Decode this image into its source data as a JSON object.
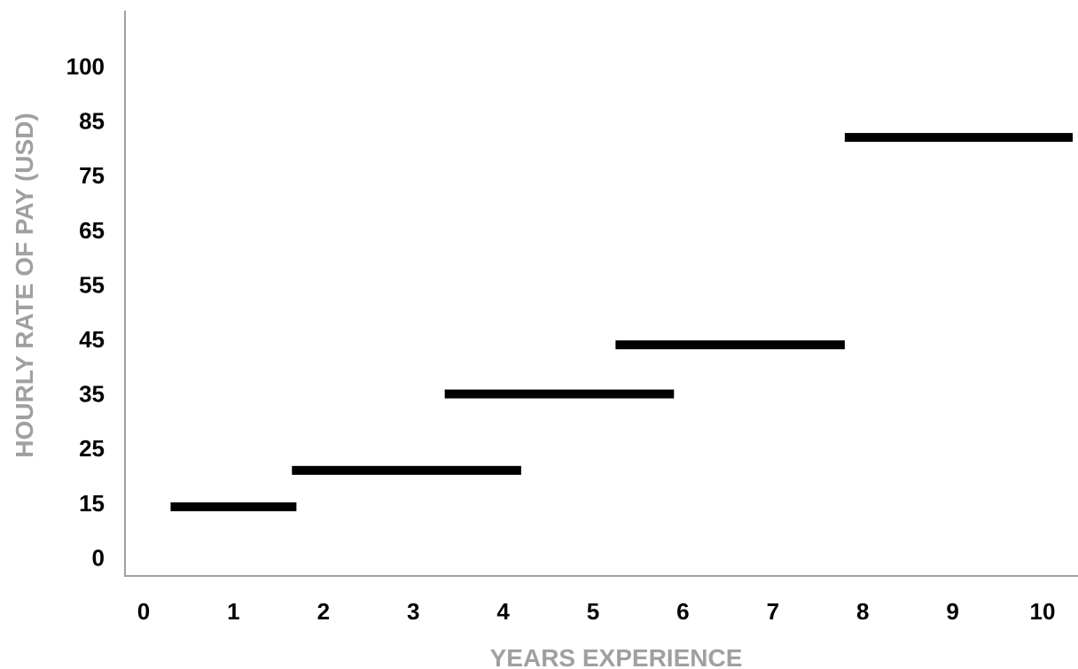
{
  "chart_data": {
    "type": "bar",
    "subtype": "floating-horizontal-segments",
    "title": "",
    "xlabel": "YEARS EXPERIENCE",
    "ylabel": "HOURLY RATE OF PAY (USD)",
    "x_ticks": [
      "0",
      "1",
      "2",
      "3",
      "4",
      "5",
      "6",
      "7",
      "8",
      "9",
      "10"
    ],
    "y_ticks": [
      "0",
      "15",
      "25",
      "35",
      "45",
      "55",
      "65",
      "75",
      "85",
      "100"
    ],
    "segments": [
      {
        "x_start": 0.3,
        "x_end": 1.7,
        "y": 14
      },
      {
        "x_start": 1.65,
        "x_end": 4.2,
        "y": 21
      },
      {
        "x_start": 3.35,
        "x_end": 5.9,
        "y": 35
      },
      {
        "x_start": 5.25,
        "x_end": 7.8,
        "y": 44
      },
      {
        "x_start": 7.8,
        "x_end": 10.4,
        "y": 82
      }
    ],
    "grid": false,
    "legend": "none",
    "colors": {
      "segment": "#000000",
      "axis": "#a0a0a0",
      "axis_title": "#a0a0a0",
      "tick_label": "#000000"
    }
  }
}
